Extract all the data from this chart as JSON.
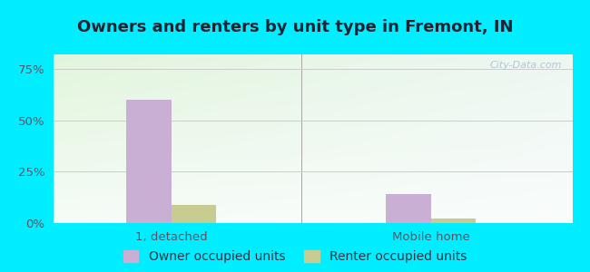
{
  "title": "Owners and renters by unit type in Fremont, IN",
  "categories": [
    "1, detached",
    "Mobile home"
  ],
  "owner_values": [
    60,
    14
  ],
  "renter_values": [
    9,
    2
  ],
  "owner_color": "#c9afd4",
  "renter_color": "#c8cc90",
  "yticks": [
    0,
    25,
    50,
    75
  ],
  "ytick_labels": [
    "0%",
    "25%",
    "50%",
    "75%"
  ],
  "ylim": [
    0,
    82
  ],
  "bar_width": 0.38,
  "outer_bg": "#00eeff",
  "plot_bg_left": "#dff0d8",
  "plot_bg_right": "#eaf5f0",
  "watermark": "City-Data.com",
  "legend_labels": [
    "Owner occupied units",
    "Renter occupied units"
  ],
  "title_fontsize": 13,
  "tick_fontsize": 9.5,
  "legend_fontsize": 10,
  "group_positions": [
    1.0,
    3.2
  ]
}
